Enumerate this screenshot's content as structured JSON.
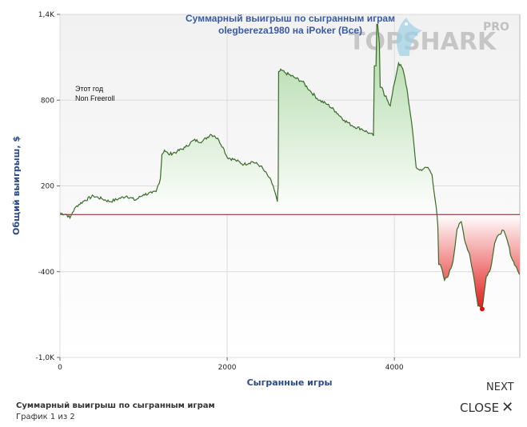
{
  "chart_data": {
    "type": "area",
    "title": "Суммарный выигрыш по сыгранным играм",
    "subtitle": "olegbereza1980 на iPoker (Все)",
    "xlabel": "Сыгранные игры",
    "ylabel": "Общий выигрыш, $",
    "xlim": [
      0,
      5500
    ],
    "ylim": [
      -1000,
      1400
    ],
    "x_ticks": [
      0,
      2000,
      4000
    ],
    "x_tick_labels": [
      "0",
      "2000",
      "4000"
    ],
    "y_ticks": [
      -1000,
      -400,
      200,
      800,
      1400
    ],
    "y_tick_labels": [
      "-1,0K",
      "-400",
      "200",
      "800",
      "1,4K"
    ],
    "grid": true,
    "baseline": 0,
    "colors": {
      "line": "#3a6b2a",
      "positive_fill": "#cfe8c9",
      "negative_fill": "#ee2222",
      "baseline": "#8b1a1a",
      "end_marker": "#dd1111"
    },
    "series": [
      {
        "x": [
          0,
          80,
          120,
          150,
          200,
          300,
          400,
          500,
          600,
          700,
          800,
          900,
          1000,
          1100,
          1150,
          1200,
          1220,
          1250,
          1300,
          1400,
          1500,
          1600,
          1700,
          1800,
          1850,
          1900,
          1950,
          2000,
          2100,
          2200,
          2300,
          2400,
          2450,
          2500,
          2550,
          2600,
          2610,
          2620,
          2650,
          2700,
          2800,
          2900,
          3000,
          3100,
          3200,
          3300,
          3400,
          3500,
          3600,
          3700,
          3750,
          3780,
          3800,
          3820,
          3850,
          3880,
          3900,
          3950,
          4000,
          4050,
          4100,
          4150,
          4180,
          4220,
          4260,
          4300,
          4350,
          4400,
          4450,
          4500,
          4520,
          4550,
          4600,
          4650,
          4700,
          4750,
          4800,
          4850,
          4900,
          4950,
          5000,
          5050,
          5100,
          5150,
          5200,
          5250,
          5300,
          5350,
          5400,
          5450,
          5500
        ],
        "y": [
          10,
          0,
          -25,
          15,
          60,
          100,
          130,
          110,
          90,
          110,
          130,
          100,
          140,
          150,
          160,
          250,
          420,
          450,
          420,
          440,
          470,
          520,
          510,
          560,
          550,
          520,
          470,
          400,
          380,
          350,
          370,
          340,
          300,
          260,
          200,
          90,
          200,
          1000,
          1010,
          990,
          960,
          930,
          860,
          800,
          770,
          720,
          660,
          620,
          600,
          570,
          550,
          1040,
          1330,
          1200,
          890,
          830,
          830,
          760,
          920,
          1060,
          1020,
          880,
          750,
          570,
          330,
          310,
          320,
          330,
          280,
          50,
          -80,
          -350,
          -460,
          -420,
          -330,
          -100,
          -50,
          -200,
          -280,
          -440,
          -640,
          -650,
          -430,
          -380,
          -200,
          -140,
          -110,
          -180,
          -300,
          -360,
          -420
        ]
      }
    ],
    "annotations": [
      "Этот год",
      "Non Freeroll"
    ]
  },
  "controls": {
    "next_label": "NEXT",
    "close_label": "CLOSE"
  },
  "footer": {
    "title": "Суммарный выигрыш по сыгранным играм",
    "subtitle": "График 1 из 2"
  },
  "logo": {
    "text": "TOPSHARK",
    "pro": "PRO"
  }
}
